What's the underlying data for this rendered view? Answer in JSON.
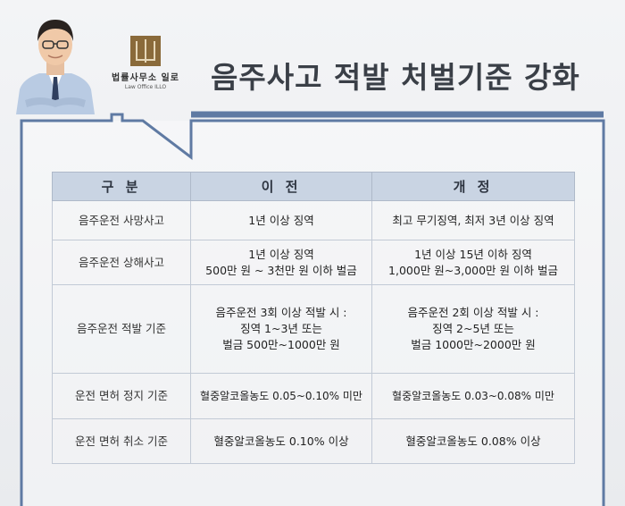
{
  "header": {
    "title": "음주사고 적발 처벌기준 강화",
    "logo_ko": "법률사무소 일로",
    "logo_en": "Law Office  ILLO"
  },
  "table": {
    "headers": [
      "구 분",
      "이 전",
      "개 정"
    ],
    "rows": [
      {
        "category": "음주운전 사망사고",
        "before": "1년 이상  징역",
        "after": "최고 무기징역,  최저 3년 이상 징역"
      },
      {
        "category": "음주운전  상해사고",
        "before": "1년 이상 징역\n500만 원 ~ 3천만 원 이하 벌금",
        "after": "1년 이상 15년 이하 징역\n1,000만 원~3,000만 원 이하 벌금"
      },
      {
        "category": "음주운전 적발 기준",
        "before": "음주운전 3회 이상 적발 시 :\n징역 1~3년 또는\n벌금 500만~1000만 원",
        "after": "음주운전 2회 이상 적발 시 :\n징역 2~5년 또는\n벌금 1000만~2000만 원"
      },
      {
        "category": "운전 면허 정지 기준",
        "before": "혈중알코올농도 0.05~0.10% 미만",
        "after": "혈중알코올농도 0.03~0.08% 미만"
      },
      {
        "category": "운전 면허 취소 기준",
        "before": "혈중알코올농도 0.10% 이상",
        "after": "혈중알코올농도 0.08% 이상"
      }
    ]
  },
  "colors": {
    "frame": "#5f7aa3",
    "header_bg": "#c9d4e3",
    "logo": "#8a6a3a"
  }
}
